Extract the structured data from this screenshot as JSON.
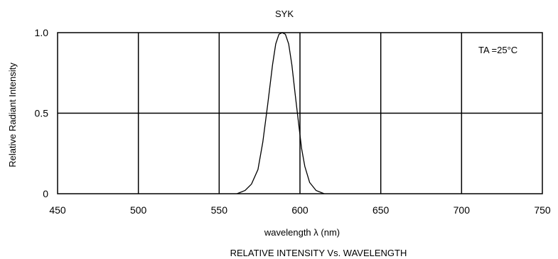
{
  "chart_data": {
    "type": "line",
    "title": "SYK",
    "caption": "RELATIVE  INTENSITY  Vs.  WAVELENGTH",
    "xlabel": "wavelength  λ  (nm)",
    "ylabel": "Relative  Radiant  Intensity",
    "annotation": "TA =25°C",
    "xlim": [
      450,
      750
    ],
    "ylim": [
      0,
      1.0
    ],
    "x_ticks": [
      450,
      500,
      550,
      600,
      650,
      700,
      750
    ],
    "x_tick_labels": [
      "450",
      "500",
      "550",
      "600",
      "650",
      "700",
      "750"
    ],
    "y_ticks": [
      0,
      0.5,
      1.0
    ],
    "y_tick_labels": [
      "0",
      "0.5",
      "1.0"
    ],
    "grid": true,
    "legend": "none",
    "line_color": "#000000",
    "series": [
      {
        "x": [
          561,
          566,
          570,
          574,
          577,
          580,
          583,
          585,
          587,
          589,
          591,
          593,
          595,
          597,
          599,
          601,
          603,
          606,
          610,
          615
        ],
        "y": [
          0.0,
          0.02,
          0.06,
          0.15,
          0.32,
          0.55,
          0.8,
          0.93,
          0.99,
          1.0,
          0.99,
          0.93,
          0.8,
          0.62,
          0.45,
          0.28,
          0.17,
          0.07,
          0.02,
          0.0
        ]
      }
    ]
  }
}
